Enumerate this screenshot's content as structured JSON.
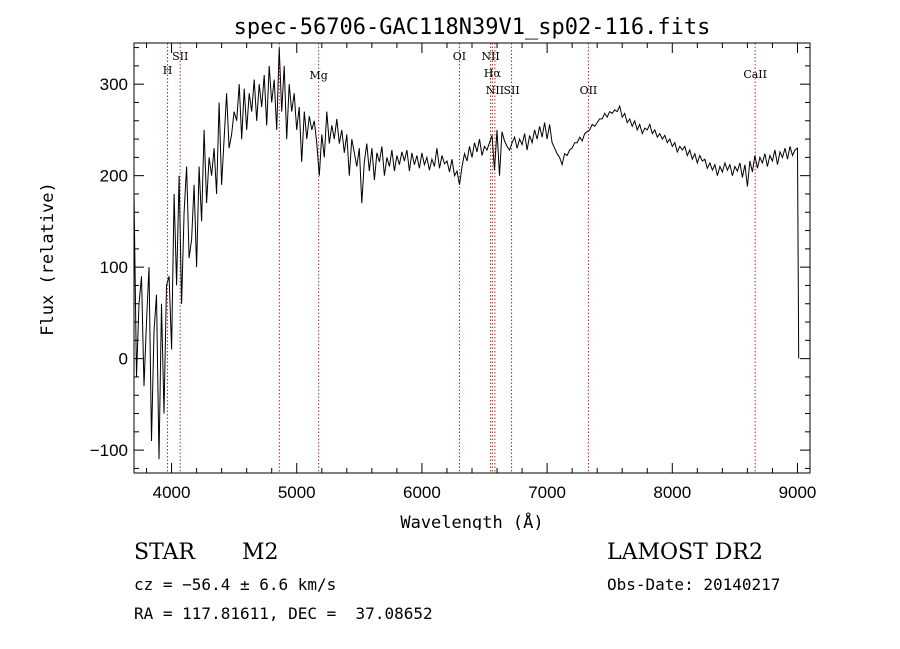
{
  "chart_data": {
    "type": "line",
    "title": "spec-56706-GAC118N39V1_sp02-116.fits",
    "xlabel": "Wavelength (Å)",
    "ylabel": "Flux (relative)",
    "xlim": [
      3700,
      9100
    ],
    "ylim": [
      -125,
      345
    ],
    "xticks": [
      4000,
      5000,
      6000,
      7000,
      8000,
      9000
    ],
    "yticks": [
      -100,
      0,
      100,
      200,
      300
    ],
    "grid": false,
    "series": [
      {
        "x": [
          3700,
          3720,
          3740,
          3760,
          3780,
          3800,
          3820,
          3840,
          3860,
          3880,
          3900,
          3920,
          3940,
          3960,
          3980,
          4000,
          4020,
          4040,
          4060,
          4080,
          4100,
          4120,
          4140,
          4160,
          4180,
          4200,
          4220,
          4240,
          4260,
          4280,
          4300,
          4320,
          4340,
          4360,
          4380,
          4400,
          4420,
          4440,
          4460,
          4480,
          4500,
          4520,
          4540,
          4560,
          4580,
          4600,
          4620,
          4640,
          4660,
          4680,
          4700,
          4720,
          4740,
          4760,
          4780,
          4800,
          4820,
          4840,
          4860,
          4880,
          4900,
          4920,
          4940,
          4960,
          4980,
          5000,
          5020,
          5040,
          5060,
          5080,
          5100,
          5120,
          5140,
          5160,
          5180,
          5200,
          5220,
          5240,
          5260,
          5280,
          5300,
          5320,
          5340,
          5360,
          5380,
          5400,
          5420,
          5440,
          5460,
          5480,
          5500,
          5520,
          5540,
          5560,
          5580,
          5600,
          5620,
          5640,
          5660,
          5680,
          5700,
          5720,
          5740,
          5760,
          5780,
          5800,
          5820,
          5840,
          5860,
          5880,
          5900,
          5920,
          5940,
          5960,
          5980,
          6000,
          6020,
          6040,
          6060,
          6080,
          6100,
          6120,
          6140,
          6160,
          6180,
          6200,
          6220,
          6240,
          6260,
          6280,
          6300,
          6320,
          6340,
          6360,
          6380,
          6400,
          6420,
          6440,
          6460,
          6480,
          6500,
          6520,
          6540,
          6560,
          6580,
          6600,
          6620,
          6640,
          6660,
          6680,
          6700,
          6720,
          6740,
          6760,
          6780,
          6800,
          6820,
          6840,
          6860,
          6880,
          6900,
          6920,
          6940,
          6960,
          6980,
          7000,
          7020,
          7040,
          7060,
          7080,
          7100,
          7120,
          7140,
          7160,
          7180,
          7200,
          7220,
          7240,
          7260,
          7280,
          7300,
          7320,
          7340,
          7360,
          7380,
          7400,
          7420,
          7440,
          7460,
          7480,
          7500,
          7520,
          7540,
          7560,
          7580,
          7600,
          7620,
          7640,
          7660,
          7680,
          7700,
          7720,
          7740,
          7760,
          7780,
          7800,
          7820,
          7840,
          7860,
          7880,
          7900,
          7920,
          7940,
          7960,
          7980,
          8000,
          8020,
          8040,
          8060,
          8080,
          8100,
          8120,
          8140,
          8160,
          8180,
          8200,
          8220,
          8240,
          8260,
          8280,
          8300,
          8320,
          8340,
          8360,
          8380,
          8400,
          8420,
          8440,
          8460,
          8480,
          8500,
          8520,
          8540,
          8560,
          8580,
          8600,
          8620,
          8640,
          8660,
          8680,
          8700,
          8720,
          8740,
          8760,
          8780,
          8800,
          8820,
          8840,
          8860,
          8880,
          8900,
          8920,
          8940,
          8960,
          8980,
          9000,
          9010
        ],
        "y": [
          180,
          -20,
          60,
          90,
          -30,
          40,
          100,
          -90,
          30,
          70,
          -110,
          60,
          -60,
          80,
          90,
          10,
          180,
          80,
          200,
          60,
          160,
          210,
          110,
          130,
          190,
          100,
          210,
          150,
          250,
          170,
          220,
          200,
          230,
          180,
          280,
          190,
          240,
          290,
          230,
          245,
          270,
          260,
          300,
          240,
          295,
          250,
          290,
          270,
          305,
          260,
          300,
          275,
          310,
          255,
          320,
          280,
          305,
          250,
          340,
          270,
          320,
          240,
          300,
          270,
          290,
          250,
          275,
          215,
          270,
          240,
          265,
          250,
          260,
          235,
          200,
          245,
          220,
          270,
          235,
          255,
          240,
          262,
          235,
          250,
          225,
          245,
          200,
          240,
          225,
          210,
          230,
          170,
          215,
          235,
          205,
          230,
          195,
          225,
          215,
          232,
          200,
          220,
          210,
          228,
          205,
          222,
          212,
          226,
          216,
          228,
          205,
          225,
          212,
          222,
          208,
          225,
          212,
          220,
          206,
          218,
          210,
          230,
          208,
          222,
          213,
          216,
          204,
          218,
          200,
          205,
          190,
          210,
          224,
          216,
          232,
          220,
          236,
          226,
          240,
          222,
          232,
          228,
          236,
          244,
          206,
          250,
          200,
          248,
          238,
          232,
          228,
          236,
          242,
          230,
          240,
          234,
          246,
          228,
          244,
          236,
          250,
          240,
          254,
          242,
          258,
          240,
          256,
          236,
          230,
          224,
          220,
          212,
          224,
          222,
          228,
          230,
          236,
          236,
          242,
          238,
          246,
          248,
          250,
          256,
          254,
          258,
          262,
          262,
          268,
          264,
          270,
          268,
          272,
          270,
          276,
          264,
          268,
          258,
          262,
          254,
          260,
          250,
          256,
          246,
          252,
          250,
          256,
          246,
          250,
          242,
          246,
          240,
          244,
          236,
          240,
          232,
          236,
          226,
          232,
          228,
          232,
          222,
          228,
          218,
          224,
          214,
          222,
          216,
          218,
          208,
          214,
          206,
          212,
          200,
          210,
          204,
          214,
          206,
          212,
          200,
          210,
          205,
          214,
          198,
          212,
          188,
          216,
          204,
          222,
          208,
          220,
          214,
          224,
          210,
          222,
          216,
          228,
          212,
          226,
          220,
          230,
          218,
          232,
          222,
          228,
          230,
          0
        ]
      }
    ],
    "line_marks": [
      {
        "label": "H",
        "x": 3968
      },
      {
        "label": "SII",
        "x": 4069
      },
      {
        "label": "",
        "x": 4861
      },
      {
        "label": "Mg",
        "x": 5175
      },
      {
        "label": "OI",
        "x": 6300
      },
      {
        "label": "NII",
        "x": 6548
      },
      {
        "label": "Hα",
        "x": 6563
      },
      {
        "label": "NII",
        "x": 6583
      },
      {
        "label": "SII",
        "x": 6716
      },
      {
        "label": "OII",
        "x": 7330
      },
      {
        "label": "CaII",
        "x": 8662
      }
    ]
  },
  "info": {
    "class": "STAR",
    "subclass": "M2",
    "survey": "LAMOST DR2",
    "cz": "cz = −56.4 ± 6.6 km/s",
    "obs_date": "Obs-Date: 20140217",
    "radec": "RA = 117.81611, DEC =  37.08652"
  }
}
